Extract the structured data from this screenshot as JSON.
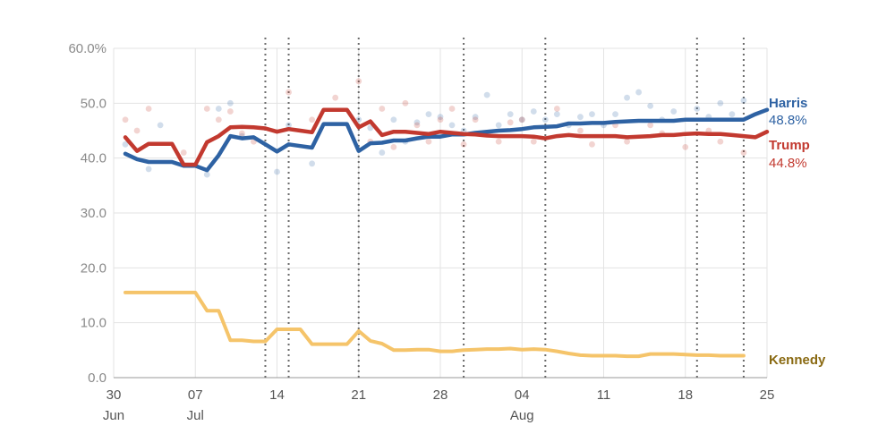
{
  "chart_data": {
    "type": "line",
    "y_axis": {
      "min": 0,
      "max": 60,
      "ticks": [
        0,
        10,
        20,
        30,
        40,
        50,
        60
      ],
      "tick_labels": [
        "0.0",
        "10.0",
        "20.0",
        "30.0",
        "40.0",
        "50.0",
        "60.0%"
      ]
    },
    "x_axis": {
      "start": "2024-06-30",
      "end": "2024-08-25",
      "ticks": [
        {
          "date": "2024-06-30",
          "day": "30",
          "month": "Jun"
        },
        {
          "date": "2024-07-07",
          "day": "07",
          "month": "Jul"
        },
        {
          "date": "2024-07-14",
          "day": "14",
          "month": ""
        },
        {
          "date": "2024-07-21",
          "day": "21",
          "month": ""
        },
        {
          "date": "2024-07-28",
          "day": "28",
          "month": ""
        },
        {
          "date": "2024-08-04",
          "day": "04",
          "month": "Aug"
        },
        {
          "date": "2024-08-11",
          "day": "11",
          "month": ""
        },
        {
          "date": "2024-08-18",
          "day": "18",
          "month": ""
        },
        {
          "date": "2024-08-25",
          "day": "25",
          "month": ""
        }
      ]
    },
    "grid": true,
    "event_dates": [
      "2024-07-13",
      "2024-07-15",
      "2024-07-21",
      "2024-07-30",
      "2024-08-06",
      "2024-08-19",
      "2024-08-23"
    ],
    "series": [
      {
        "name": "Harris",
        "color": "#2e62a3",
        "end_label": "48.8%",
        "points": [
          [
            "2024-07-01",
            40.8
          ],
          [
            "2024-07-02",
            39.8
          ],
          [
            "2024-07-03",
            39.3
          ],
          [
            "2024-07-04",
            39.3
          ],
          [
            "2024-07-05",
            39.3
          ],
          [
            "2024-07-06",
            38.6
          ],
          [
            "2024-07-07",
            38.6
          ],
          [
            "2024-07-08",
            37.8
          ],
          [
            "2024-07-09",
            40.5
          ],
          [
            "2024-07-10",
            44.0
          ],
          [
            "2024-07-11",
            43.6
          ],
          [
            "2024-07-12",
            43.8
          ],
          [
            "2024-07-13",
            42.5
          ],
          [
            "2024-07-14",
            41.2
          ],
          [
            "2024-07-15",
            42.5
          ],
          [
            "2024-07-16",
            42.2
          ],
          [
            "2024-07-17",
            41.9
          ],
          [
            "2024-07-18",
            46.2
          ],
          [
            "2024-07-19",
            46.2
          ],
          [
            "2024-07-20",
            46.2
          ],
          [
            "2024-07-21",
            41.3
          ],
          [
            "2024-07-22",
            42.7
          ],
          [
            "2024-07-23",
            42.8
          ],
          [
            "2024-07-24",
            43.2
          ],
          [
            "2024-07-25",
            43.2
          ],
          [
            "2024-07-26",
            43.6
          ],
          [
            "2024-07-27",
            43.9
          ],
          [
            "2024-07-28",
            43.9
          ],
          [
            "2024-07-29",
            44.3
          ],
          [
            "2024-07-30",
            44.3
          ],
          [
            "2024-07-31",
            44.6
          ],
          [
            "2024-08-01",
            44.8
          ],
          [
            "2024-08-02",
            45.0
          ],
          [
            "2024-08-03",
            45.1
          ],
          [
            "2024-08-04",
            45.3
          ],
          [
            "2024-08-05",
            45.6
          ],
          [
            "2024-08-06",
            45.7
          ],
          [
            "2024-08-07",
            45.8
          ],
          [
            "2024-08-08",
            46.3
          ],
          [
            "2024-08-09",
            46.3
          ],
          [
            "2024-08-10",
            46.4
          ],
          [
            "2024-08-11",
            46.4
          ],
          [
            "2024-08-12",
            46.6
          ],
          [
            "2024-08-13",
            46.7
          ],
          [
            "2024-08-14",
            46.8
          ],
          [
            "2024-08-15",
            46.8
          ],
          [
            "2024-08-16",
            46.8
          ],
          [
            "2024-08-17",
            46.8
          ],
          [
            "2024-08-18",
            47.0
          ],
          [
            "2024-08-19",
            47.0
          ],
          [
            "2024-08-20",
            47.0
          ],
          [
            "2024-08-21",
            47.0
          ],
          [
            "2024-08-22",
            47.0
          ],
          [
            "2024-08-23",
            47.0
          ],
          [
            "2024-08-24",
            48.0
          ],
          [
            "2024-08-25",
            48.8
          ]
        ]
      },
      {
        "name": "Trump",
        "color": "#c2392f",
        "end_label": "44.8%",
        "points": [
          [
            "2024-07-01",
            43.8
          ],
          [
            "2024-07-02",
            41.3
          ],
          [
            "2024-07-03",
            42.6
          ],
          [
            "2024-07-04",
            42.6
          ],
          [
            "2024-07-05",
            42.6
          ],
          [
            "2024-07-06",
            38.8
          ],
          [
            "2024-07-07",
            38.8
          ],
          [
            "2024-07-08",
            42.9
          ],
          [
            "2024-07-09",
            44.0
          ],
          [
            "2024-07-10",
            45.6
          ],
          [
            "2024-07-11",
            45.7
          ],
          [
            "2024-07-12",
            45.6
          ],
          [
            "2024-07-13",
            45.4
          ],
          [
            "2024-07-14",
            44.8
          ],
          [
            "2024-07-15",
            45.3
          ],
          [
            "2024-07-16",
            45.0
          ],
          [
            "2024-07-17",
            44.7
          ],
          [
            "2024-07-18",
            48.8
          ],
          [
            "2024-07-19",
            48.8
          ],
          [
            "2024-07-20",
            48.8
          ],
          [
            "2024-07-21",
            45.6
          ],
          [
            "2024-07-22",
            46.7
          ],
          [
            "2024-07-23",
            44.2
          ],
          [
            "2024-07-24",
            44.8
          ],
          [
            "2024-07-25",
            44.8
          ],
          [
            "2024-07-26",
            44.6
          ],
          [
            "2024-07-27",
            44.4
          ],
          [
            "2024-07-28",
            44.8
          ],
          [
            "2024-07-29",
            44.6
          ],
          [
            "2024-07-30",
            44.4
          ],
          [
            "2024-07-31",
            44.3
          ],
          [
            "2024-08-01",
            44.1
          ],
          [
            "2024-08-02",
            44.0
          ],
          [
            "2024-08-03",
            44.0
          ],
          [
            "2024-08-04",
            44.0
          ],
          [
            "2024-08-05",
            43.9
          ],
          [
            "2024-08-06",
            43.6
          ],
          [
            "2024-08-07",
            44.0
          ],
          [
            "2024-08-08",
            44.2
          ],
          [
            "2024-08-09",
            44.0
          ],
          [
            "2024-08-10",
            44.0
          ],
          [
            "2024-08-11",
            44.0
          ],
          [
            "2024-08-12",
            44.0
          ],
          [
            "2024-08-13",
            43.8
          ],
          [
            "2024-08-14",
            43.9
          ],
          [
            "2024-08-15",
            44.0
          ],
          [
            "2024-08-16",
            44.2
          ],
          [
            "2024-08-17",
            44.2
          ],
          [
            "2024-08-18",
            44.4
          ],
          [
            "2024-08-19",
            44.5
          ],
          [
            "2024-08-20",
            44.4
          ],
          [
            "2024-08-21",
            44.4
          ],
          [
            "2024-08-22",
            44.2
          ],
          [
            "2024-08-23",
            44.0
          ],
          [
            "2024-08-24",
            43.8
          ],
          [
            "2024-08-25",
            44.8
          ]
        ]
      },
      {
        "name": "Kennedy",
        "color": "#f5c46a",
        "label_color": "#8a6a12",
        "end_label": "",
        "points": [
          [
            "2024-07-01",
            15.5
          ],
          [
            "2024-07-02",
            15.5
          ],
          [
            "2024-07-03",
            15.5
          ],
          [
            "2024-07-04",
            15.5
          ],
          [
            "2024-07-05",
            15.5
          ],
          [
            "2024-07-06",
            15.5
          ],
          [
            "2024-07-07",
            15.5
          ],
          [
            "2024-07-08",
            12.2
          ],
          [
            "2024-07-09",
            12.2
          ],
          [
            "2024-07-10",
            6.8
          ],
          [
            "2024-07-11",
            6.8
          ],
          [
            "2024-07-12",
            6.6
          ],
          [
            "2024-07-13",
            6.6
          ],
          [
            "2024-07-14",
            8.8
          ],
          [
            "2024-07-15",
            8.8
          ],
          [
            "2024-07-16",
            8.8
          ],
          [
            "2024-07-17",
            6.1
          ],
          [
            "2024-07-18",
            6.1
          ],
          [
            "2024-07-19",
            6.1
          ],
          [
            "2024-07-20",
            6.1
          ],
          [
            "2024-07-21",
            8.5
          ],
          [
            "2024-07-22",
            6.7
          ],
          [
            "2024-07-23",
            6.2
          ],
          [
            "2024-07-24",
            5.0
          ],
          [
            "2024-07-25",
            5.0
          ],
          [
            "2024-07-26",
            5.1
          ],
          [
            "2024-07-27",
            5.1
          ],
          [
            "2024-07-28",
            4.8
          ],
          [
            "2024-07-29",
            4.8
          ],
          [
            "2024-07-30",
            5.0
          ],
          [
            "2024-07-31",
            5.1
          ],
          [
            "2024-08-01",
            5.2
          ],
          [
            "2024-08-02",
            5.2
          ],
          [
            "2024-08-03",
            5.3
          ],
          [
            "2024-08-04",
            5.1
          ],
          [
            "2024-08-05",
            5.2
          ],
          [
            "2024-08-06",
            5.1
          ],
          [
            "2024-08-07",
            4.8
          ],
          [
            "2024-08-08",
            4.4
          ],
          [
            "2024-08-09",
            4.1
          ],
          [
            "2024-08-10",
            4.0
          ],
          [
            "2024-08-11",
            4.0
          ],
          [
            "2024-08-12",
            4.0
          ],
          [
            "2024-08-13",
            3.9
          ],
          [
            "2024-08-14",
            3.9
          ],
          [
            "2024-08-15",
            4.3
          ],
          [
            "2024-08-16",
            4.3
          ],
          [
            "2024-08-17",
            4.3
          ],
          [
            "2024-08-18",
            4.2
          ],
          [
            "2024-08-19",
            4.1
          ],
          [
            "2024-08-20",
            4.1
          ],
          [
            "2024-08-21",
            4.0
          ],
          [
            "2024-08-22",
            4.0
          ],
          [
            "2024-08-23",
            4.0
          ]
        ]
      }
    ],
    "poll_dots": [
      {
        "series": "Harris",
        "color": "#2e62a3",
        "points": [
          [
            "2024-07-01",
            42.5
          ],
          [
            "2024-07-03",
            38.0
          ],
          [
            "2024-07-04",
            46.0
          ],
          [
            "2024-07-08",
            37.0
          ],
          [
            "2024-07-09",
            49.0
          ],
          [
            "2024-07-10",
            50.0
          ],
          [
            "2024-07-11",
            44.0
          ],
          [
            "2024-07-14",
            37.5
          ],
          [
            "2024-07-15",
            46.0
          ],
          [
            "2024-07-17",
            39.0
          ],
          [
            "2024-07-21",
            47.0
          ],
          [
            "2024-07-22",
            45.5
          ],
          [
            "2024-07-23",
            41.0
          ],
          [
            "2024-07-24",
            47.0
          ],
          [
            "2024-07-25",
            43.0
          ],
          [
            "2024-07-26",
            46.5
          ],
          [
            "2024-07-27",
            48.0
          ],
          [
            "2024-07-28",
            47.5
          ],
          [
            "2024-07-29",
            46.0
          ],
          [
            "2024-07-30",
            45.0
          ],
          [
            "2024-07-31",
            47.5
          ],
          [
            "2024-08-01",
            51.5
          ],
          [
            "2024-08-02",
            46.0
          ],
          [
            "2024-08-03",
            48.0
          ],
          [
            "2024-08-04",
            47.0
          ],
          [
            "2024-08-05",
            48.5
          ],
          [
            "2024-08-06",
            47.0
          ],
          [
            "2024-08-07",
            48.0
          ],
          [
            "2024-08-08",
            46.0
          ],
          [
            "2024-08-09",
            47.5
          ],
          [
            "2024-08-10",
            48.0
          ],
          [
            "2024-08-11",
            46.0
          ],
          [
            "2024-08-12",
            48.0
          ],
          [
            "2024-08-13",
            51.0
          ],
          [
            "2024-08-14",
            52.0
          ],
          [
            "2024-08-15",
            49.5
          ],
          [
            "2024-08-16",
            47.0
          ],
          [
            "2024-08-17",
            48.5
          ],
          [
            "2024-08-19",
            49.0
          ],
          [
            "2024-08-20",
            47.5
          ],
          [
            "2024-08-21",
            50.0
          ],
          [
            "2024-08-22",
            48.0
          ],
          [
            "2024-08-23",
            50.5
          ]
        ]
      },
      {
        "series": "Trump",
        "color": "#c2392f",
        "points": [
          [
            "2024-07-01",
            47.0
          ],
          [
            "2024-07-02",
            45.0
          ],
          [
            "2024-07-03",
            49.0
          ],
          [
            "2024-07-06",
            41.0
          ],
          [
            "2024-07-08",
            49.0
          ],
          [
            "2024-07-09",
            47.0
          ],
          [
            "2024-07-10",
            48.5
          ],
          [
            "2024-07-11",
            44.5
          ],
          [
            "2024-07-12",
            43.0
          ],
          [
            "2024-07-15",
            52.0
          ],
          [
            "2024-07-17",
            47.0
          ],
          [
            "2024-07-19",
            51.0
          ],
          [
            "2024-07-21",
            54.0
          ],
          [
            "2024-07-22",
            43.0
          ],
          [
            "2024-07-23",
            49.0
          ],
          [
            "2024-07-24",
            42.0
          ],
          [
            "2024-07-25",
            50.0
          ],
          [
            "2024-07-26",
            46.0
          ],
          [
            "2024-07-27",
            43.0
          ],
          [
            "2024-07-28",
            47.0
          ],
          [
            "2024-07-29",
            49.0
          ],
          [
            "2024-07-30",
            42.5
          ],
          [
            "2024-07-31",
            47.0
          ],
          [
            "2024-08-02",
            43.0
          ],
          [
            "2024-08-03",
            46.5
          ],
          [
            "2024-08-04",
            47.0
          ],
          [
            "2024-08-05",
            43.0
          ],
          [
            "2024-08-07",
            49.0
          ],
          [
            "2024-08-09",
            45.0
          ],
          [
            "2024-08-10",
            42.5
          ],
          [
            "2024-08-12",
            46.0
          ],
          [
            "2024-08-13",
            43.0
          ],
          [
            "2024-08-15",
            46.0
          ],
          [
            "2024-08-16",
            44.5
          ],
          [
            "2024-08-18",
            42.0
          ],
          [
            "2024-08-20",
            45.0
          ],
          [
            "2024-08-21",
            43.0
          ],
          [
            "2024-08-23",
            41.0
          ]
        ]
      }
    ]
  }
}
